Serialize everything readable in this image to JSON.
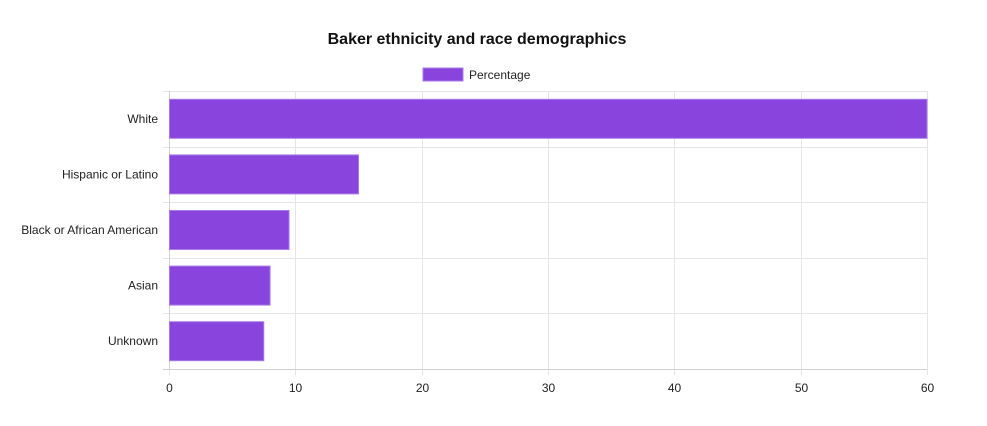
{
  "chart_data": {
    "type": "bar",
    "orientation": "horizontal",
    "title": "Baker ethnicity and race demographics",
    "categories": [
      "White",
      "Hispanic or Latino",
      "Black or African American",
      "Asian",
      "Unknown"
    ],
    "series": [
      {
        "name": "Percentage",
        "values": [
          60.0,
          15.0,
          9.5,
          8.0,
          7.5
        ],
        "color": "#8844dd",
        "border_color": "#a97be8"
      }
    ],
    "xlim": [
      0,
      60
    ],
    "x_ticks": [
      0,
      10,
      20,
      30,
      40,
      50,
      60
    ],
    "xlabel": "",
    "ylabel": "",
    "grid": true,
    "legend_position": "top"
  }
}
